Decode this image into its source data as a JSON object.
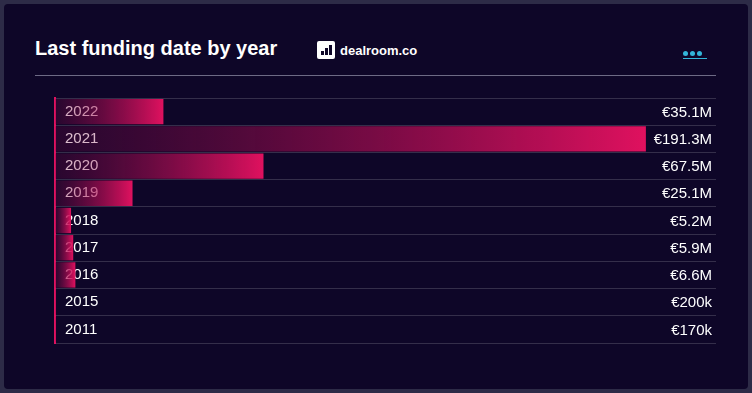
{
  "chart_data": {
    "type": "bar",
    "title": "Last funding date by year",
    "annotations": [
      "dealroom.co"
    ],
    "orientation": "horizontal",
    "categories": [
      "2022",
      "2021",
      "2020",
      "2019",
      "2018",
      "2017",
      "2016",
      "2015",
      "2011"
    ],
    "values": [
      35.1,
      191.3,
      67.5,
      25.1,
      5.2,
      5.9,
      6.6,
      0.2,
      0.17
    ],
    "value_labels": [
      "€35.1M",
      "€191.3M",
      "€67.5M",
      "€25.1M",
      "€5.2M",
      "€5.9M",
      "€6.6M",
      "€200k",
      "€170k"
    ],
    "color": "#e0115f",
    "xlim": [
      0,
      214
    ],
    "grid": true,
    "data_labels": true,
    "tick_labels": "y"
  }
}
